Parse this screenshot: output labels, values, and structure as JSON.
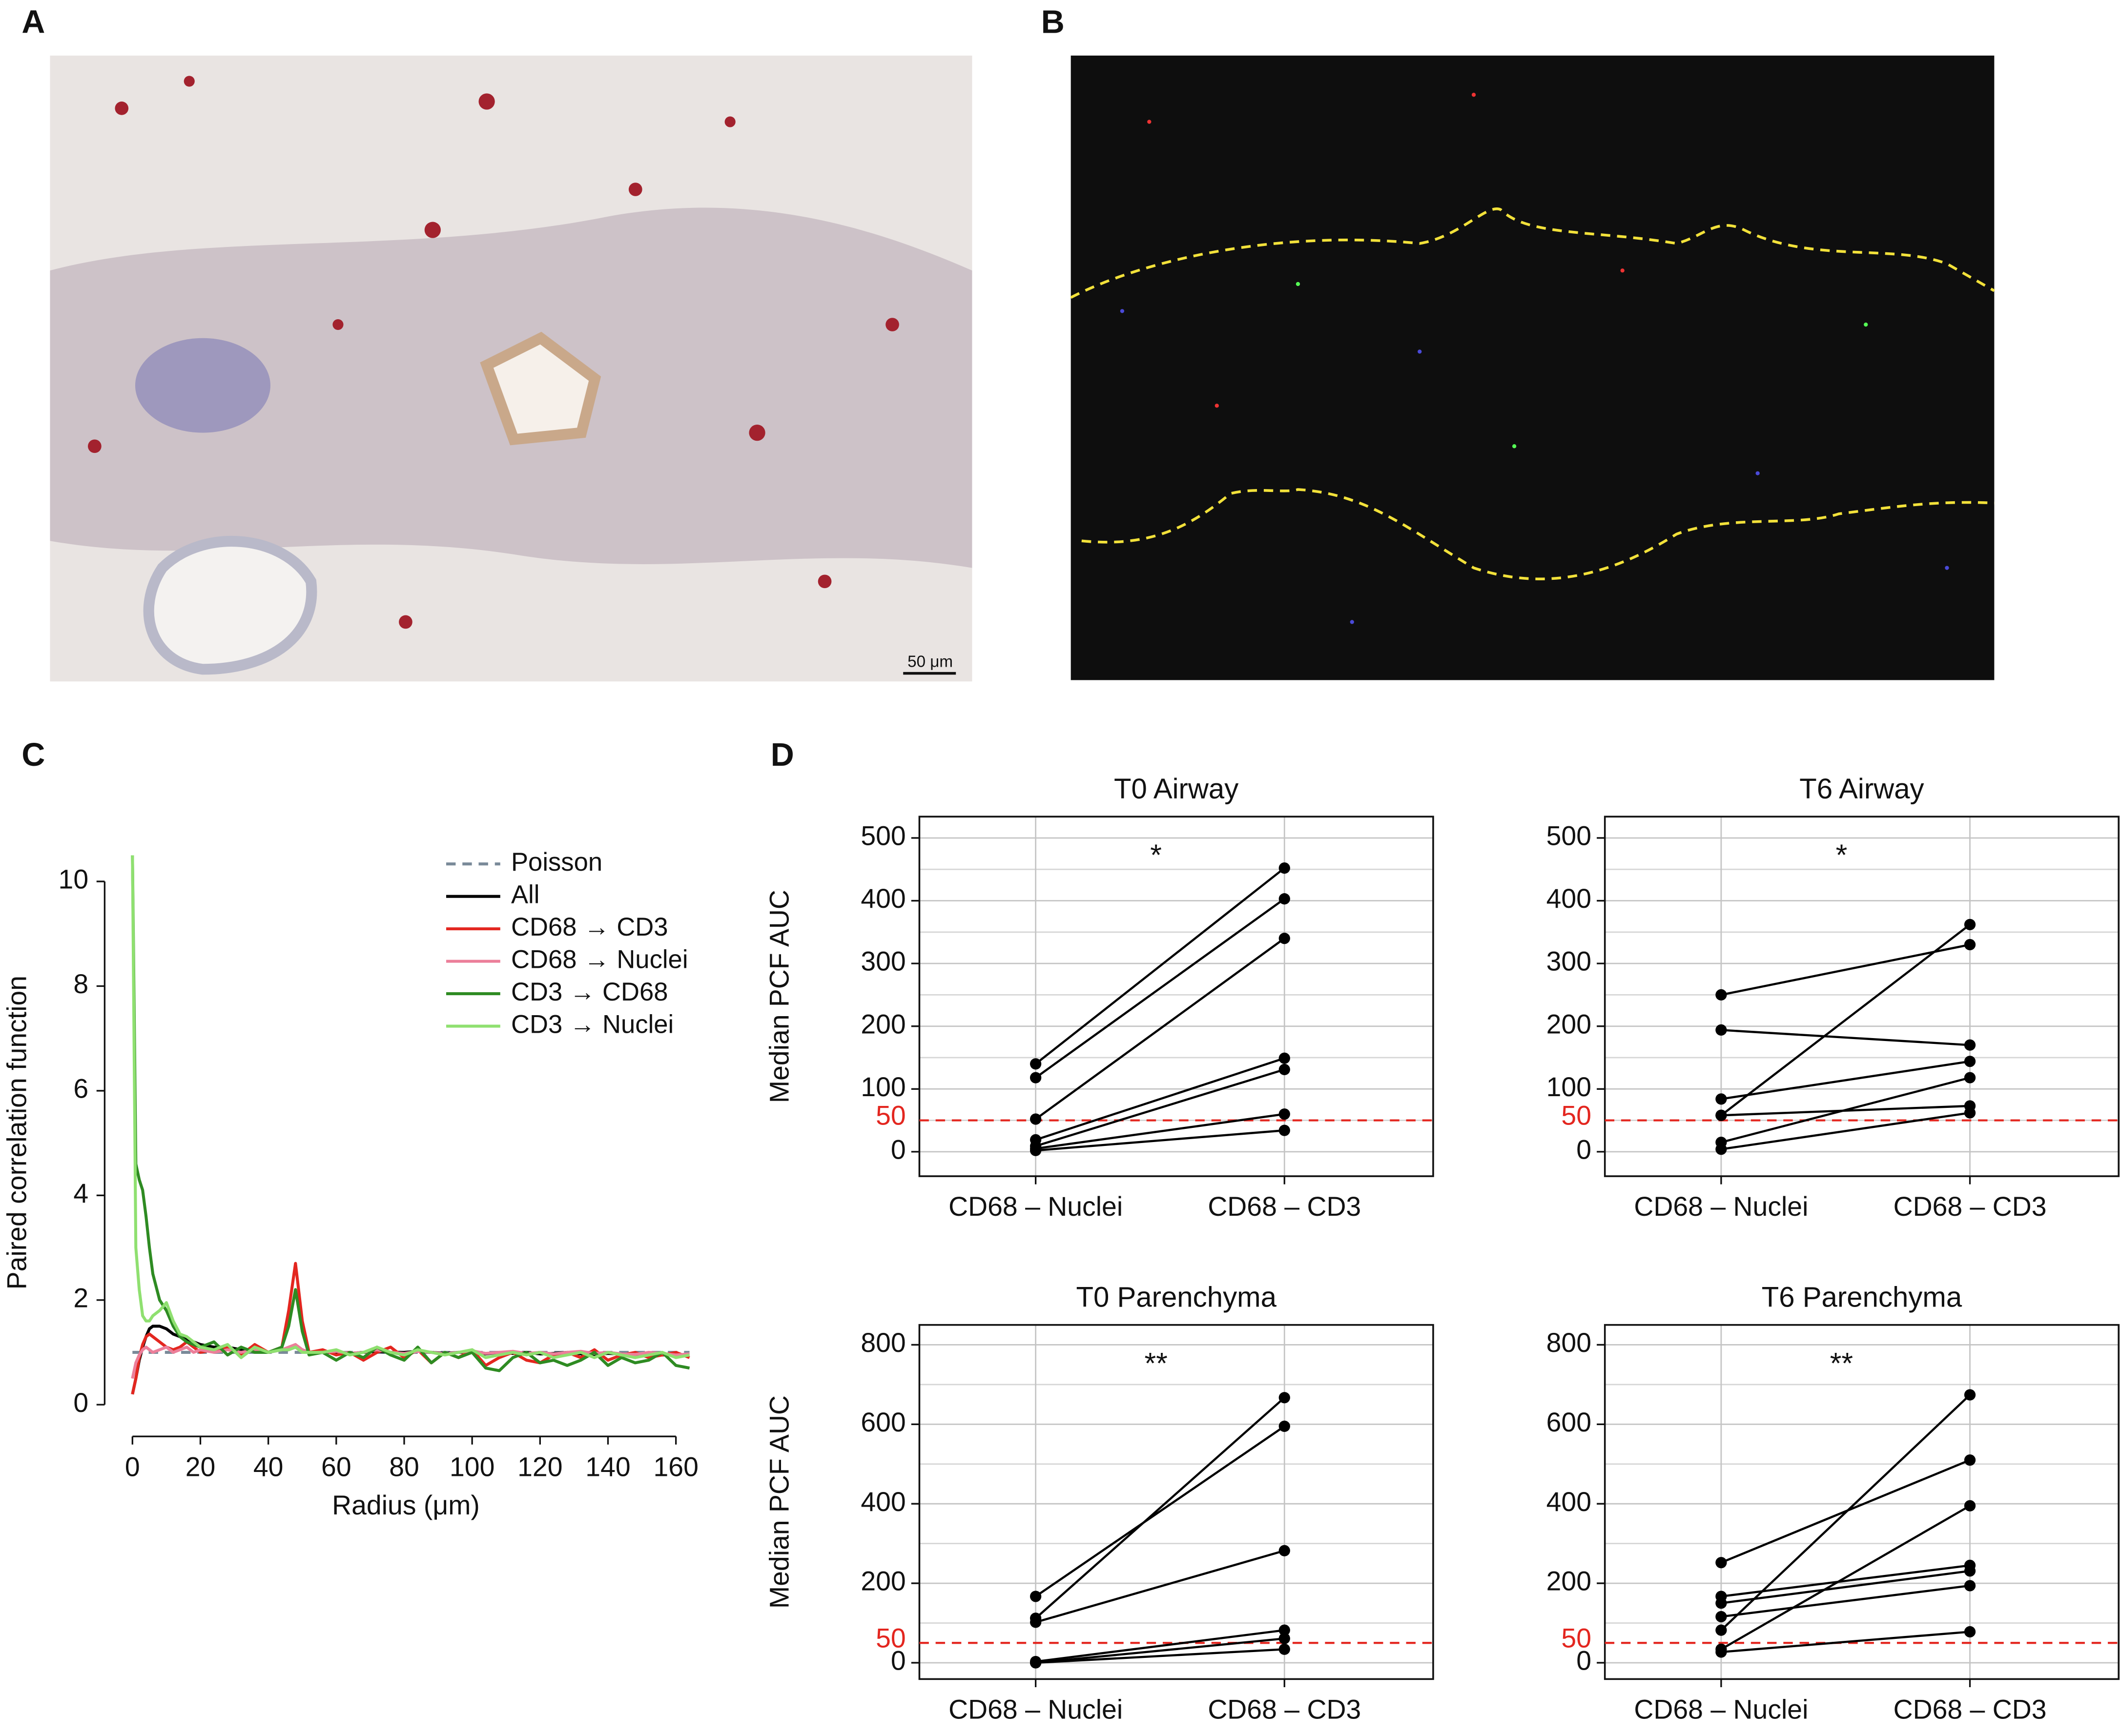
{
  "panel_labels": [
    "A",
    "B",
    "C",
    "D"
  ],
  "scale_bar": "50 μm",
  "chart_data": [
    {
      "type": "line",
      "x_label": "Radius (μm)",
      "y_label": "Paired correlation function",
      "xlim": [
        -5,
        166
      ],
      "ylim": [
        -0.4,
        10.8
      ],
      "xticks": [
        0,
        20,
        40,
        60,
        80,
        100,
        120,
        140,
        160
      ],
      "yticks": [
        0,
        2,
        4,
        6,
        8,
        10
      ],
      "legend": "upper right",
      "grid": false,
      "x": [
        0,
        1,
        2,
        3,
        4,
        5,
        6,
        8,
        10,
        12,
        14,
        16,
        18,
        20,
        24,
        28,
        32,
        36,
        40,
        44,
        46,
        48,
        50,
        52,
        56,
        60,
        64,
        68,
        72,
        76,
        80,
        84,
        88,
        92,
        96,
        100,
        104,
        108,
        112,
        116,
        120,
        124,
        128,
        132,
        136,
        140,
        144,
        148,
        152,
        156,
        160,
        164
      ],
      "series": [
        {
          "name": "Poisson",
          "color": "#7a8a99",
          "dashed": true,
          "values": [
            1,
            1,
            1,
            1,
            1,
            1,
            1,
            1,
            1,
            1,
            1,
            1,
            1,
            1,
            1,
            1,
            1,
            1,
            1,
            1,
            1,
            1,
            1,
            1,
            1,
            1,
            1,
            1,
            1,
            1,
            1,
            1,
            1,
            1,
            1,
            1,
            1,
            1,
            1,
            1,
            1,
            1,
            1,
            1,
            1,
            1,
            1,
            1,
            1,
            1,
            1,
            1
          ]
        },
        {
          "name": "All",
          "color": "#000000",
          "values": [
            0.2,
            0.5,
            0.85,
            1.1,
            1.3,
            1.45,
            1.5,
            1.5,
            1.45,
            1.35,
            1.3,
            1.25,
            1.2,
            1.15,
            1.1,
            1.1,
            1.05,
            1.05,
            1.0,
            1.05,
            1.05,
            1.1,
            1.05,
            1.0,
            1.0,
            1.0,
            0.98,
            1.0,
            1.02,
            1.0,
            1.0,
            1.02,
            1.0,
            0.98,
            1.0,
            1.0,
            0.97,
            1.0,
            0.98,
            1.0,
            0.97,
            0.98,
            1.0,
            0.97,
            0.96,
            0.98,
            0.97,
            0.96,
            0.97,
            0.95,
            0.96,
            0.95
          ]
        },
        {
          "name": "CD68 → CD3",
          "color": "#e3261f",
          "values": [
            0.2,
            0.5,
            0.9,
            1.15,
            1.3,
            1.35,
            1.3,
            1.2,
            1.1,
            1.05,
            1.1,
            1.2,
            1.1,
            1.0,
            1.05,
            1.1,
            0.95,
            1.15,
            1.0,
            1.1,
            1.8,
            2.7,
            1.6,
            1.0,
            1.05,
            0.95,
            1.0,
            0.85,
            1.0,
            1.1,
            0.9,
            1.05,
            0.8,
            1.0,
            0.9,
            1.05,
            0.75,
            0.9,
            1.0,
            0.85,
            0.8,
            0.95,
            1.0,
            0.9,
            1.05,
            0.85,
            0.95,
            1.0,
            0.9,
            0.95,
            1.0,
            0.9
          ]
        },
        {
          "name": "CD68 → Nuclei",
          "color": "#ec7f9a",
          "values": [
            0.5,
            0.8,
            0.95,
            1.05,
            1.1,
            1.05,
            1.0,
            1.05,
            1.1,
            1.0,
            1.05,
            1.1,
            1.0,
            1.05,
            1.0,
            1.05,
            1.0,
            1.05,
            1.0,
            1.05,
            1.1,
            1.15,
            1.05,
            1.0,
            1.0,
            1.02,
            0.98,
            1.0,
            1.05,
            1.0,
            0.98,
            1.02,
            1.0,
            0.97,
            1.0,
            1.03,
            0.98,
            1.0,
            1.02,
            0.98,
            1.0,
            0.97,
            1.0,
            1.02,
            0.98,
            1.0,
            0.97,
            0.96,
            1.0,
            0.98,
            0.95,
            0.97
          ]
        },
        {
          "name": "CD3 → CD68",
          "color": "#2e8b22",
          "values": [
            10.5,
            4.6,
            4.3,
            4.1,
            3.6,
            3.0,
            2.5,
            2.0,
            1.8,
            1.5,
            1.3,
            1.2,
            1.15,
            1.1,
            1.2,
            0.95,
            1.1,
            1.0,
            1.0,
            1.1,
            1.5,
            2.2,
            1.4,
            0.95,
            1.0,
            0.85,
            1.0,
            0.9,
            1.1,
            0.95,
            0.85,
            1.1,
            0.8,
            1.0,
            0.9,
            1.0,
            0.7,
            0.65,
            0.9,
            1.0,
            0.8,
            0.85,
            0.75,
            0.85,
            1.0,
            0.75,
            0.9,
            0.8,
            0.85,
            1.0,
            0.75,
            0.7
          ]
        },
        {
          "name": "CD3 → Nuclei",
          "color": "#8fe070",
          "values": [
            10.5,
            3.0,
            2.2,
            1.7,
            1.6,
            1.6,
            1.7,
            1.8,
            1.95,
            1.6,
            1.35,
            1.3,
            1.2,
            1.1,
            1.05,
            1.15,
            0.9,
            1.1,
            1.0,
            1.05,
            1.05,
            1.1,
            1.0,
            1.0,
            1.0,
            1.05,
            0.95,
            1.0,
            1.1,
            1.0,
            0.95,
            1.05,
            1.0,
            0.95,
            1.0,
            1.05,
            0.9,
            0.95,
            1.0,
            0.95,
            1.0,
            0.9,
            0.95,
            1.0,
            0.9,
            1.0,
            0.95,
            0.9,
            0.95,
            1.0,
            0.9,
            0.95
          ]
        }
      ]
    },
    {
      "type": "slope",
      "title": "T0 Airway",
      "y_label": "Median PCF AUC",
      "annotation": "*",
      "categories": [
        "CD68 – Nuclei",
        "CD68 – CD3"
      ],
      "ylim": [
        -39,
        534
      ],
      "yticks": [
        0,
        100,
        200,
        300,
        400,
        500
      ],
      "y_minor_ticks": [
        50,
        150,
        250,
        350,
        450
      ],
      "grid": true,
      "reference_line": {
        "value": 50,
        "color": "#e3261f"
      },
      "series": [
        {
          "color": "#000000",
          "values": [
            140,
            452
          ]
        },
        {
          "color": "#000000",
          "values": [
            118,
            403
          ]
        },
        {
          "color": "#000000",
          "values": [
            52,
            340
          ]
        },
        {
          "color": "#000000",
          "values": [
            19,
            149
          ]
        },
        {
          "color": "#000000",
          "values": [
            9,
            131
          ]
        },
        {
          "color": "#000000",
          "values": [
            5,
            60
          ]
        },
        {
          "color": "#000000",
          "values": [
            2,
            34
          ]
        }
      ]
    },
    {
      "type": "slope",
      "title": "T6 Airway",
      "annotation": "*",
      "categories": [
        "CD68 – Nuclei",
        "CD68 – CD3"
      ],
      "ylim": [
        -39,
        534
      ],
      "yticks": [
        0,
        100,
        200,
        300,
        400,
        500
      ],
      "y_minor_ticks": [
        50,
        150,
        250,
        350,
        450
      ],
      "grid": true,
      "reference_line": {
        "value": 50,
        "color": "#e3261f"
      },
      "series": [
        {
          "color": "#000000",
          "values": [
            250,
            330
          ]
        },
        {
          "color": "#000000",
          "values": [
            194,
            170
          ]
        },
        {
          "color": "#000000",
          "values": [
            84,
            144
          ]
        },
        {
          "color": "#000000",
          "values": [
            58,
            362
          ]
        },
        {
          "color": "#000000",
          "values": [
            58,
            73
          ]
        },
        {
          "color": "#000000",
          "values": [
            15,
            118
          ]
        },
        {
          "color": "#000000",
          "values": [
            4,
            62
          ]
        }
      ]
    },
    {
      "type": "slope",
      "title": "T0 Parenchyma",
      "y_label": "Median PCF AUC",
      "annotation": "**",
      "categories": [
        "CD68 – Nuclei",
        "CD68 – CD3"
      ],
      "ylim": [
        -41,
        850
      ],
      "yticks": [
        0,
        200,
        400,
        600,
        800
      ],
      "y_minor_ticks": [
        100,
        300,
        500,
        700
      ],
      "grid": true,
      "reference_line": {
        "value": 50,
        "color": "#e3261f"
      },
      "series": [
        {
          "color": "#000000",
          "values": [
            112,
            667
          ]
        },
        {
          "color": "#000000",
          "values": [
            167,
            595
          ]
        },
        {
          "color": "#000000",
          "values": [
            102,
            282
          ]
        },
        {
          "color": "#000000",
          "values": [
            3,
            82
          ]
        },
        {
          "color": "#000000",
          "values": [
            0,
            61
          ]
        },
        {
          "color": "#000000",
          "values": [
            0,
            34
          ]
        }
      ]
    },
    {
      "type": "slope",
      "title": "T6 Parenchyma",
      "annotation": "**",
      "categories": [
        "CD68 – Nuclei",
        "CD68 – CD3"
      ],
      "ylim": [
        -41,
        850
      ],
      "yticks": [
        0,
        200,
        400,
        600,
        800
      ],
      "y_minor_ticks": [
        100,
        300,
        500,
        700
      ],
      "grid": true,
      "reference_line": {
        "value": 50,
        "color": "#e3261f"
      },
      "series": [
        {
          "color": "#000000",
          "values": [
            252,
            510
          ]
        },
        {
          "color": "#000000",
          "values": [
            167,
            245
          ]
        },
        {
          "color": "#000000",
          "values": [
            150,
            231
          ]
        },
        {
          "color": "#000000",
          "values": [
            116,
            194
          ]
        },
        {
          "color": "#000000",
          "values": [
            82,
            674
          ]
        },
        {
          "color": "#000000",
          "values": [
            34,
            395
          ]
        },
        {
          "color": "#000000",
          "values": [
            27,
            78
          ]
        }
      ]
    }
  ]
}
